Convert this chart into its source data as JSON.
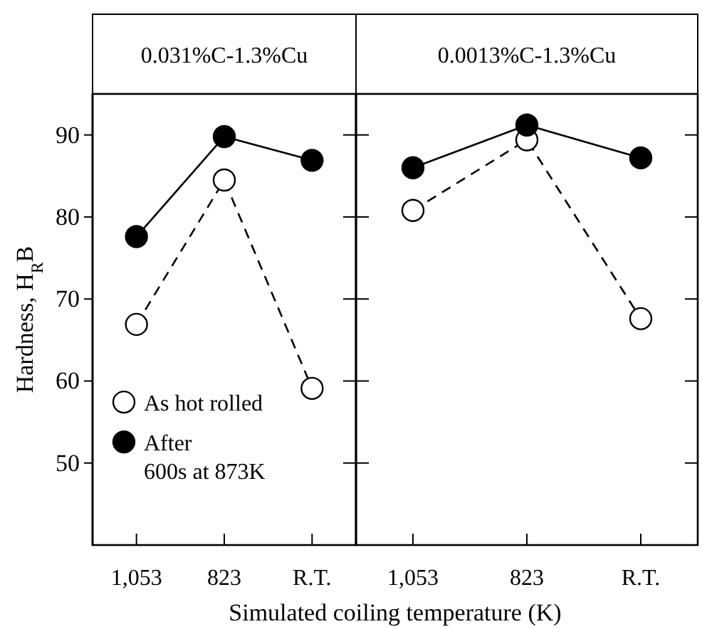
{
  "chart_data": [
    {
      "type": "line",
      "title": "0.031%C-1.3%Cu",
      "xlabel": "Simulated coiling temperature (K)",
      "ylabel": "Hardness, H$_{R}$B",
      "categories": [
        "1,053",
        "823",
        "R.T."
      ],
      "ylim": [
        40,
        95
      ],
      "yticks": [
        50,
        60,
        70,
        80,
        90
      ],
      "legend": "bottom left",
      "marker": "circle",
      "series": [
        {
          "name": "As hot rolled",
          "color": "#ffffff",
          "line_style": "dashed",
          "values": [
            66.9,
            84.5,
            59.1
          ]
        },
        {
          "name": "After 600s at 873K",
          "color": "#000000",
          "line_style": "solid",
          "values": [
            77.6,
            89.8,
            86.9
          ]
        }
      ]
    },
    {
      "type": "line",
      "title": "0.0013%C-1.3%Cu",
      "categories": [
        "1,053",
        "823",
        "R.T."
      ],
      "ylim": [
        40,
        95
      ],
      "yticks": [
        50,
        60,
        70,
        80,
        90
      ],
      "tick_labels": "x",
      "marker": "circle",
      "series": [
        {
          "color": "#ffffff",
          "line_style": "dashed",
          "values": [
            80.8,
            89.4,
            67.6
          ]
        },
        {
          "color": "#000000",
          "line_style": "solid",
          "values": [
            86,
            91.2,
            87.2
          ]
        }
      ]
    }
  ]
}
